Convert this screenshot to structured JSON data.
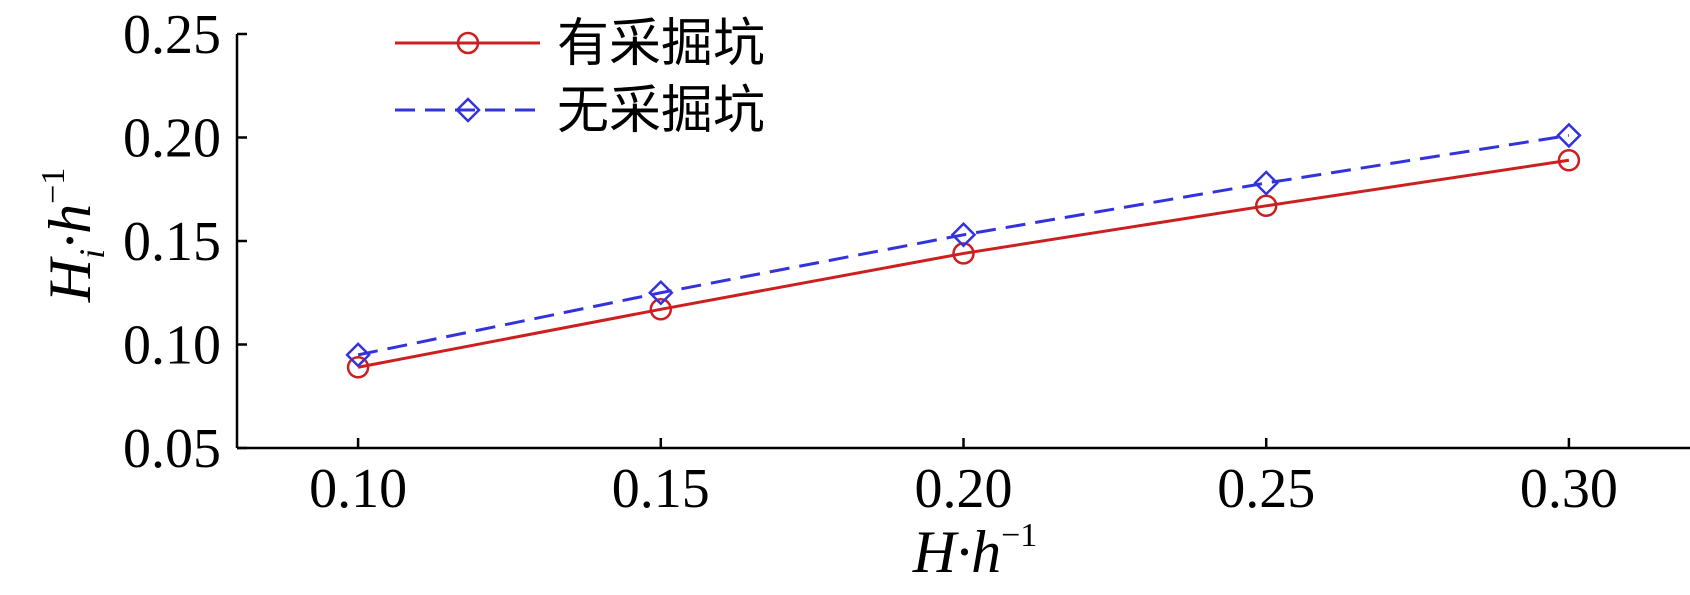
{
  "chart_data": {
    "type": "line",
    "x": [
      0.1,
      0.15,
      0.2,
      0.25,
      0.3
    ],
    "xlim": [
      0.08,
      0.32
    ],
    "ylim": [
      0.05,
      0.25
    ],
    "xticks": [
      "0.10",
      "0.15",
      "0.20",
      "0.25",
      "0.30"
    ],
    "yticks": [
      "0.05",
      "0.10",
      "0.15",
      "0.20",
      "0.25"
    ],
    "xlabel": {
      "main": "H·h",
      "sup": "−1"
    },
    "ylabel": {
      "main": "H",
      "sub": "i",
      "mid": "·h",
      "sup": "−1"
    },
    "legend_position": "top-left",
    "grid": false,
    "series": [
      {
        "name": "有采掘坑",
        "values": [
          0.089,
          0.117,
          0.144,
          0.167,
          0.189
        ],
        "color": "#cc1f1f",
        "marker": "circle",
        "dash": "solid"
      },
      {
        "name": "无采掘坑",
        "values": [
          0.095,
          0.125,
          0.153,
          0.178,
          0.201
        ],
        "color": "#3333dd",
        "marker": "diamond",
        "dash": "dashed"
      }
    ]
  }
}
